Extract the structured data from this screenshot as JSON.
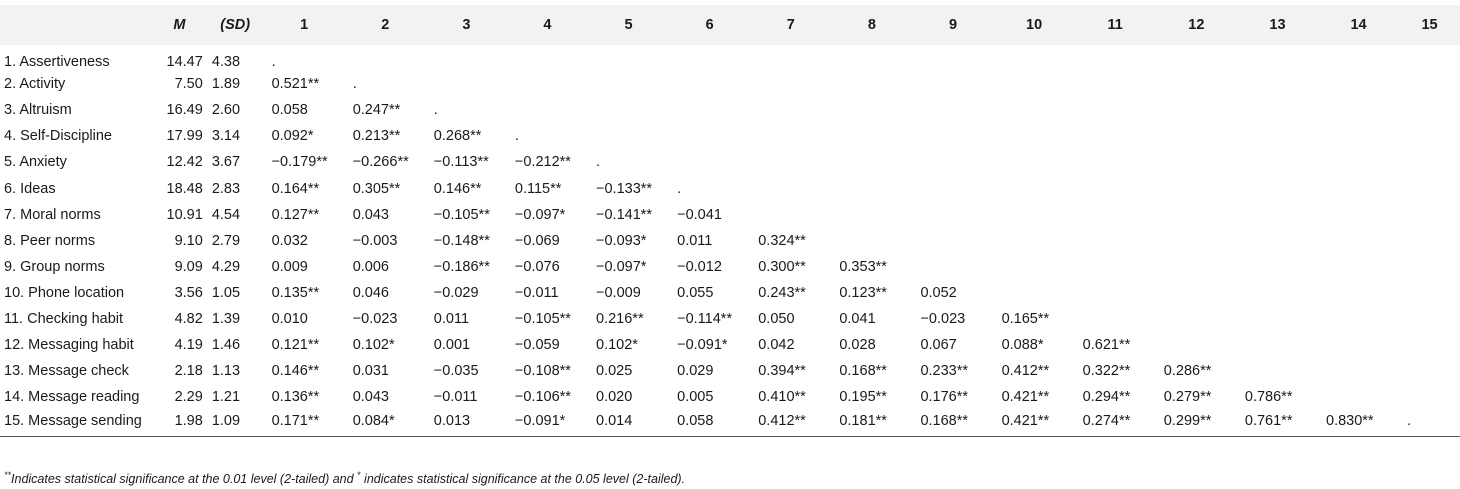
{
  "table": {
    "headers": [
      "",
      "M",
      "(SD)",
      "1",
      "2",
      "3",
      "4",
      "5",
      "6",
      "7",
      "8",
      "9",
      "10",
      "11",
      "12",
      "13",
      "14",
      "15"
    ],
    "rows": [
      [
        "1. Assertiveness",
        "14.47",
        "4.38",
        ".",
        "",
        "",
        "",
        "",
        "",
        "",
        "",
        "",
        "",
        "",
        "",
        "",
        "",
        ""
      ],
      [
        "2. Activity",
        "7.50",
        "1.89",
        "0.521**",
        ".",
        "",
        "",
        "",
        "",
        "",
        "",
        "",
        "",
        "",
        "",
        "",
        "",
        ""
      ],
      [
        "3. Altruism",
        "16.49",
        "2.60",
        "0.058",
        "0.247**",
        ".",
        "",
        "",
        "",
        "",
        "",
        "",
        "",
        "",
        "",
        "",
        "",
        ""
      ],
      [
        "4. Self-Discipline",
        "17.99",
        "3.14",
        "0.092*",
        "0.213**",
        "0.268**",
        ".",
        "",
        "",
        "",
        "",
        "",
        "",
        "",
        "",
        "",
        "",
        ""
      ],
      [
        "5. Anxiety",
        "12.42",
        "3.67",
        "−0.179**",
        "−0.266**",
        "−0.113**",
        "−0.212**",
        ".",
        "",
        "",
        "",
        "",
        "",
        "",
        "",
        "",
        "",
        ""
      ],
      [
        "6. Ideas",
        "18.48",
        "2.83",
        "0.164**",
        "0.305**",
        "0.146**",
        "0.115**",
        "−0.133**",
        ".",
        "",
        "",
        "",
        "",
        "",
        "",
        "",
        "",
        ""
      ],
      [
        "7. Moral norms",
        "10.91",
        "4.54",
        "0.127**",
        "0.043",
        "−0.105**",
        "−0.097*",
        "−0.141**",
        "−0.041",
        "",
        "",
        "",
        "",
        "",
        "",
        "",
        "",
        ""
      ],
      [
        "8. Peer norms",
        "9.10",
        "2.79",
        "0.032",
        "−0.003",
        "−0.148**",
        "−0.069",
        "−0.093*",
        "0.011",
        "0.324**",
        "",
        "",
        "",
        "",
        "",
        "",
        "",
        ""
      ],
      [
        "9. Group norms",
        "9.09",
        "4.29",
        "0.009",
        "0.006",
        "−0.186**",
        "−0.076",
        "−0.097*",
        "−0.012",
        "0.300**",
        "0.353**",
        "",
        "",
        "",
        "",
        "",
        "",
        ""
      ],
      [
        "10. Phone location",
        "3.56",
        "1.05",
        "0.135**",
        "0.046",
        "−0.029",
        "−0.011",
        "−0.009",
        "0.055",
        "0.243**",
        "0.123**",
        "0.052",
        "",
        "",
        "",
        "",
        "",
        ""
      ],
      [
        "11. Checking habit",
        "4.82",
        "1.39",
        "0.010",
        "−0.023",
        "0.011",
        "−0.105**",
        "0.216**",
        "−0.114**",
        "0.050",
        "0.041",
        "−0.023",
        "0.165**",
        "",
        "",
        "",
        "",
        ""
      ],
      [
        "12. Messaging habit",
        "4.19",
        "1.46",
        "0.121**",
        "0.102*",
        "0.001",
        "−0.059",
        "0.102*",
        "−0.091*",
        "0.042",
        "0.028",
        "0.067",
        "0.088*",
        "0.621**",
        "",
        "",
        "",
        ""
      ],
      [
        "13. Message check",
        "2.18",
        "1.13",
        "0.146**",
        "0.031",
        "−0.035",
        "−0.108**",
        "0.025",
        "0.029",
        "0.394**",
        "0.168**",
        "0.233**",
        "0.412**",
        "0.322**",
        "0.286**",
        "",
        "",
        ""
      ],
      [
        "14. Message reading",
        "2.29",
        "1.21",
        "0.136**",
        "0.043",
        "−0.011",
        "−0.106**",
        "0.020",
        "0.005",
        "0.410**",
        "0.195**",
        "0.176**",
        "0.421**",
        "0.294**",
        "0.279**",
        "0.786**",
        "",
        ""
      ],
      [
        "15. Message sending",
        "1.98",
        "1.09",
        "0.171**",
        "0.084*",
        "0.013",
        "−0.091*",
        "0.014",
        "0.058",
        "0.412**",
        "0.181**",
        "0.168**",
        "0.421**",
        "0.274**",
        "0.299**",
        "0.761**",
        "0.830**",
        "."
      ]
    ]
  },
  "footnote": {
    "mark_double": "**",
    "part1": "Indicates statistical significance at the 0.01 level (2-tailed) and ",
    "mark_single": "*",
    "part2": " indicates statistical significance at the 0.05 level (2-tailed)."
  }
}
